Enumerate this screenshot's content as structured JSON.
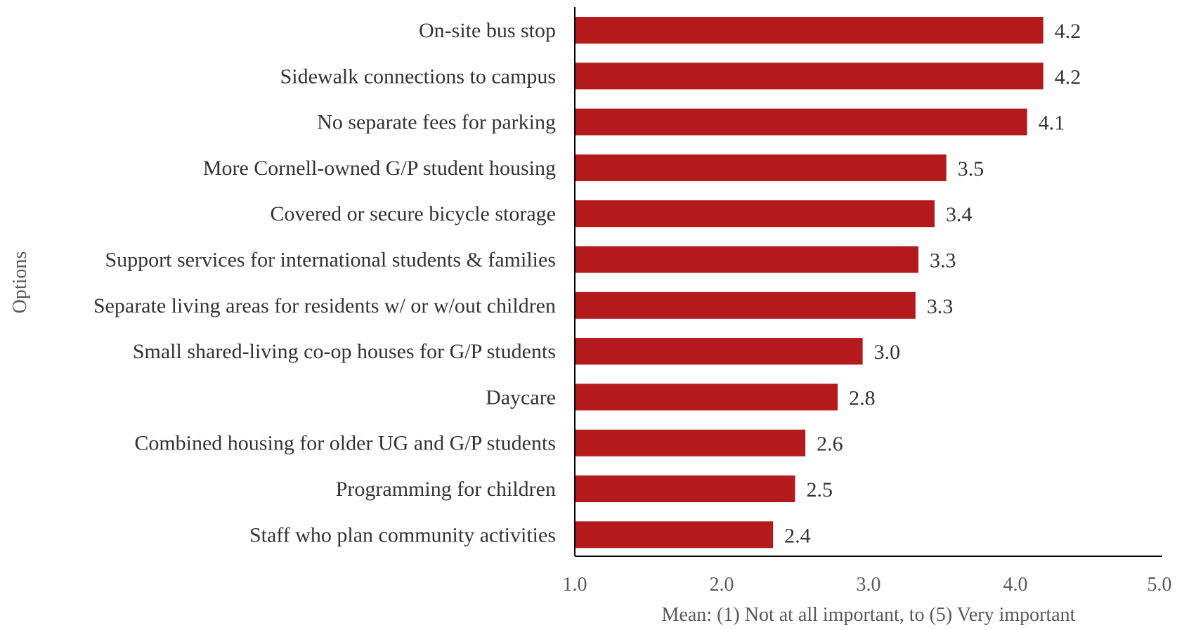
{
  "chart_data": {
    "type": "bar",
    "orientation": "horizontal",
    "categories": [
      "On-site bus stop",
      "Sidewalk connections to campus",
      "No separate fees for parking",
      "More Cornell-owned G/P student housing",
      "Covered or secure bicycle storage",
      "Support services for international students & families",
      "Separate living areas for residents w/ or w/out children",
      "Small shared-living co-op houses for G/P students",
      "Daycare",
      "Combined housing for older UG and G/P students",
      "Programming for children",
      "Staff who plan community activities"
    ],
    "values": [
      4.19,
      4.19,
      4.08,
      3.53,
      3.45,
      3.34,
      3.32,
      2.96,
      2.79,
      2.57,
      2.5,
      2.35
    ],
    "data_labels": [
      "4.2",
      "4.2",
      "4.1",
      "3.5",
      "3.4",
      "3.3",
      "3.3",
      "3.0",
      "2.8",
      "2.6",
      "2.5",
      "2.4"
    ],
    "xlabel": "Mean: (1) Not at all important, to (5) Very important",
    "ylabel": "Options",
    "xlim": [
      1.0,
      5.0
    ],
    "x_ticks": [
      "1.0",
      "2.0",
      "3.0",
      "4.0",
      "5.0"
    ],
    "bar_color": "#b41a1c",
    "grid": false,
    "legend": "none"
  }
}
